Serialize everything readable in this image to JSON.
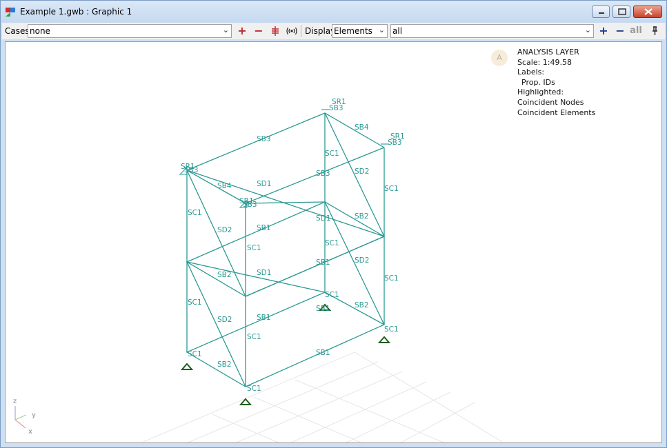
{
  "window": {
    "title": "Example 1.gwb : Graphic 1"
  },
  "toolbar": {
    "cases_label": "Cases",
    "cases_value": "none",
    "display_label": "Display",
    "display_value": "Elements",
    "filter_value": "all",
    "add_symbol": "+",
    "remove_symbol": "−",
    "all_label": "all"
  },
  "info": {
    "layer": "ANALYSIS LAYER",
    "scale": "Scale: 1:49.58",
    "labels_heading": "Labels:",
    "labels_item": "Prop. IDs",
    "highlighted_heading": "Highlighted:",
    "highlighted_items": [
      "Coincident Nodes",
      "Coincident Elements"
    ],
    "badge": "A"
  },
  "axes": {
    "z": "z",
    "y": "y",
    "x": "x"
  },
  "member_labels": {
    "sr1_a": "SR1",
    "sb3_a": "SB3",
    "sb3_top": "SB3",
    "sb4_top": "SB4",
    "sr1_b": "SR1",
    "sb3_b": "SB3",
    "sr1_c": "SR1",
    "sb3_c": "SB3",
    "sr1_d": "SR1",
    "sb3_d": "SB3",
    "sc1_back_top": "SC1",
    "sd2_right_top": "SD2",
    "sb3_mid": "SB3",
    "sb4_left": "SB4",
    "sd1_top": "SD1",
    "sc1_right_top": "SC1",
    "sc1_left_top": "SC1",
    "sd2_left_top": "SD2",
    "sb1_mid1": "SB1",
    "sd1_mid1": "SD1",
    "sb2_mid1": "SB2",
    "sc1_front_top": "SC1",
    "sc1_back_mid": "SC1",
    "sd2_right_mid": "SD2",
    "sb1_mid2": "SB1",
    "sb2_left_mid": "SB2",
    "sd1_mid2": "SD1",
    "sc1_right_mid": "SC1",
    "sc1_left_low": "SC1",
    "sd2_left_low": "SD2",
    "sc1_back_low": "SC1",
    "sb1_low": "SB1",
    "sb2_right_low": "SB2",
    "sb1_back_low": "SB1",
    "sc1_right_low": "SC1",
    "sc1_front_low": "SC1",
    "sc1_left_base": "SC1",
    "sb2_left_base": "SB2",
    "sb1_front_base": "SB1",
    "sc1_front_base": "SC1"
  },
  "colors": {
    "member": "#2a9a93",
    "support": "#1e5e1e",
    "grid": "#e6e6e6",
    "accent_plus": "#c0282d",
    "accent_blue": "#1c3f94"
  }
}
